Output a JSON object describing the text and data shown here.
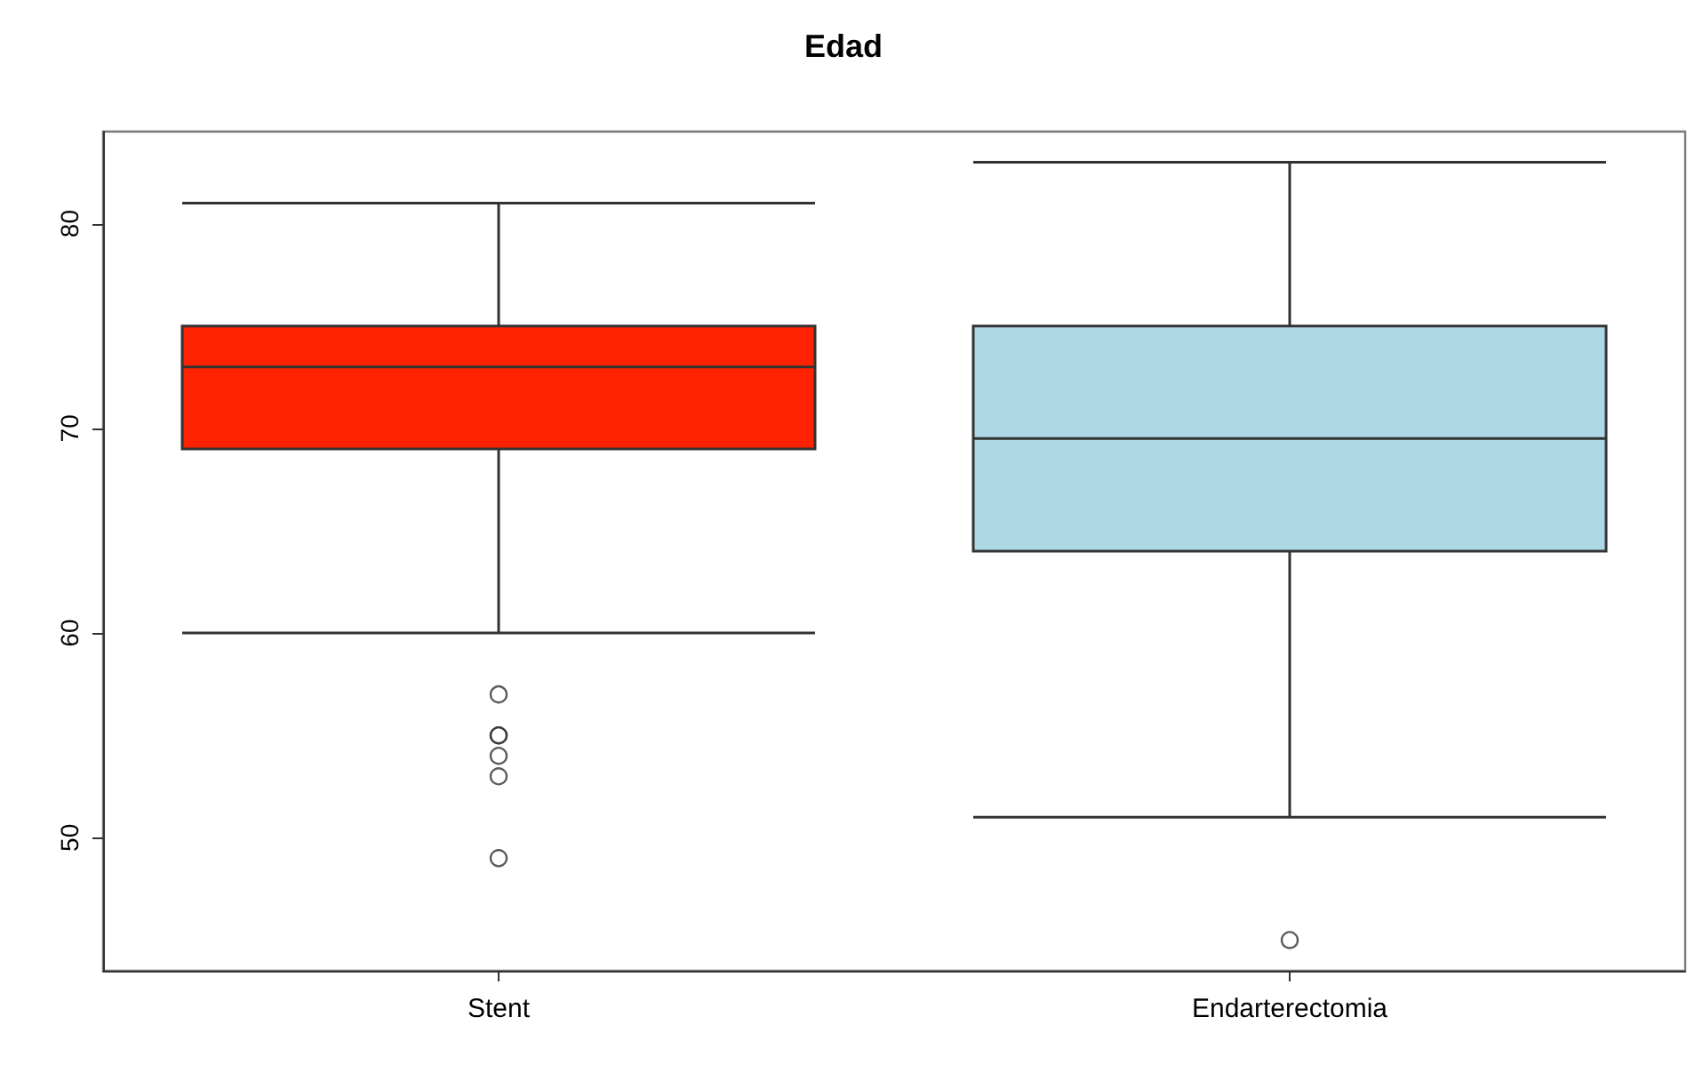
{
  "chart_data": {
    "type": "box",
    "title": "Edad",
    "categories": [
      "Stent",
      "Endarterectomia"
    ],
    "boxes": [
      {
        "low": 60,
        "q1": 69,
        "median": 73,
        "q3": 75,
        "high": 81,
        "outliers": [
          57,
          55,
          55,
          54,
          53,
          49
        ]
      },
      {
        "low": 51,
        "q1": 64,
        "median": 69.5,
        "q3": 75,
        "high": 83,
        "outliers": [
          45
        ]
      }
    ],
    "colors": [
      "#ff2200",
      "#add8e6"
    ],
    "ylim": [
      43.5,
      84.5
    ],
    "yticks": [
      50,
      60,
      70,
      80
    ],
    "grid": false
  }
}
